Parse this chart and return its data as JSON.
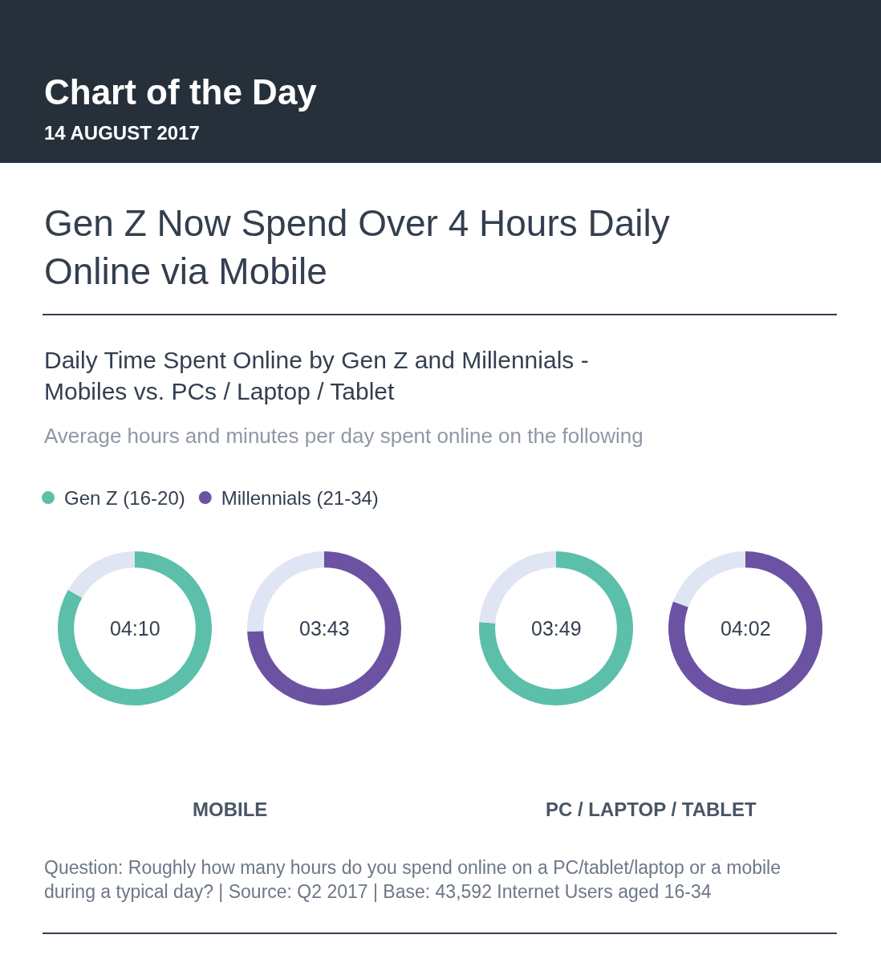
{
  "chart_data": [
    {
      "type": "donut",
      "title": "Gen Z Now Spend Over 4 Hours Daily Online via Mobile",
      "subtitle": "Daily Time Spent Online by Gen Z and Millennials - Mobiles vs. PCs / Laptop / Tablet",
      "xlabel": "MOBILE",
      "legend": "top left",
      "annotations": [
        "Chart of the Day",
        "14 AUGUST 2017",
        "Average hours and minutes per day spent online on the following",
        "Question: Roughly how many hours do you spend online on a PC/tablet/laptop or a mobile during a typical day? | Source: Q2 2017 | Base: 43,592 Internet Users aged 16-34"
      ],
      "categories": [
        "Gen Z (16-20)",
        null
      ],
      "values": [
        250,
        50
      ],
      "colors": [
        "#5bbfa9",
        "#dfe5f2"
      ],
      "value_labels": [
        "04:10",
        null
      ]
    },
    {
      "type": "donut",
      "categories": [
        "Millennials (21-34)",
        null
      ],
      "values": [
        223,
        77
      ],
      "colors": [
        "#6b52a3",
        "#dfe5f2"
      ],
      "value_labels": [
        "03:43",
        null
      ]
    },
    {
      "type": "donut",
      "xlabel": "PC / LAPTOP / TABLET",
      "categories": [
        null,
        null
      ],
      "values": [
        229,
        71
      ],
      "colors": [
        "#5bbfa9",
        "#dfe5f2"
      ],
      "value_labels": [
        "03:49",
        null
      ]
    },
    {
      "type": "donut",
      "categories": [
        null,
        null
      ],
      "values": [
        242,
        58
      ],
      "colors": [
        "#6b52a3",
        "#dfe5f2"
      ],
      "value_labels": [
        "04:02",
        null
      ]
    }
  ]
}
